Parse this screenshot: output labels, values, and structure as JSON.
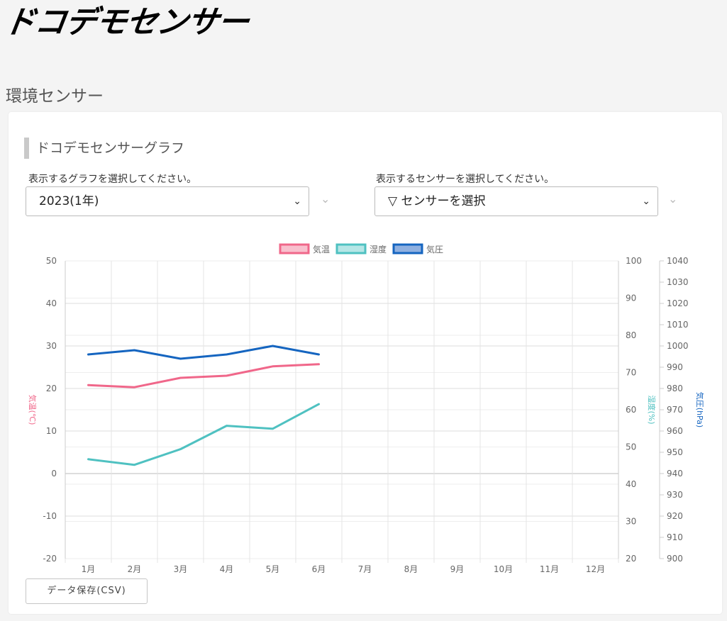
{
  "header": {
    "logo": "ドコデモセンサー"
  },
  "page": {
    "title": "環境センサー"
  },
  "card": {
    "title": "ドコデモセンサーグラフ",
    "graph_select": {
      "label": "表示するグラフを選択してください。",
      "value": "2023(1年)"
    },
    "sensor_select": {
      "label": "表示するセンサーを選択してください。",
      "value": "▽ センサーを選択"
    },
    "csv_button": "データ保存(CSV)"
  },
  "colors": {
    "temp": "#f0678a",
    "humidity": "#4fc1c1",
    "pressure": "#1565c0"
  },
  "chart_data": {
    "type": "line",
    "categories": [
      "1月",
      "2月",
      "3月",
      "4月",
      "5月",
      "6月",
      "7月",
      "8月",
      "9月",
      "10月",
      "11月",
      "12月"
    ],
    "series": [
      {
        "name": "気温",
        "axis": "y1",
        "values": [
          20.8,
          20.3,
          22.5,
          23.0,
          25.2,
          25.7,
          null,
          null,
          null,
          null,
          null,
          null
        ]
      },
      {
        "name": "湿度",
        "axis": "y2",
        "values": [
          46.7,
          45.2,
          49.4,
          55.7,
          54.9,
          61.5,
          null,
          null,
          null,
          null,
          null,
          null
        ]
      },
      {
        "name": "気圧",
        "axis": "y3",
        "values": [
          996,
          998,
          994,
          996,
          1000,
          996,
          null,
          null,
          null,
          null,
          null,
          null
        ]
      }
    ],
    "axes": {
      "y1": {
        "label": "気温(℃)",
        "min": -20,
        "max": 50,
        "step": 10,
        "position": "left"
      },
      "y2": {
        "label": "湿度(%)",
        "min": 20,
        "max": 100,
        "step": 10,
        "position": "right"
      },
      "y3": {
        "label": "気圧(hPa)",
        "min": 900,
        "max": 1040,
        "step": 10,
        "position": "right"
      }
    },
    "legend": "top",
    "grid": true
  }
}
